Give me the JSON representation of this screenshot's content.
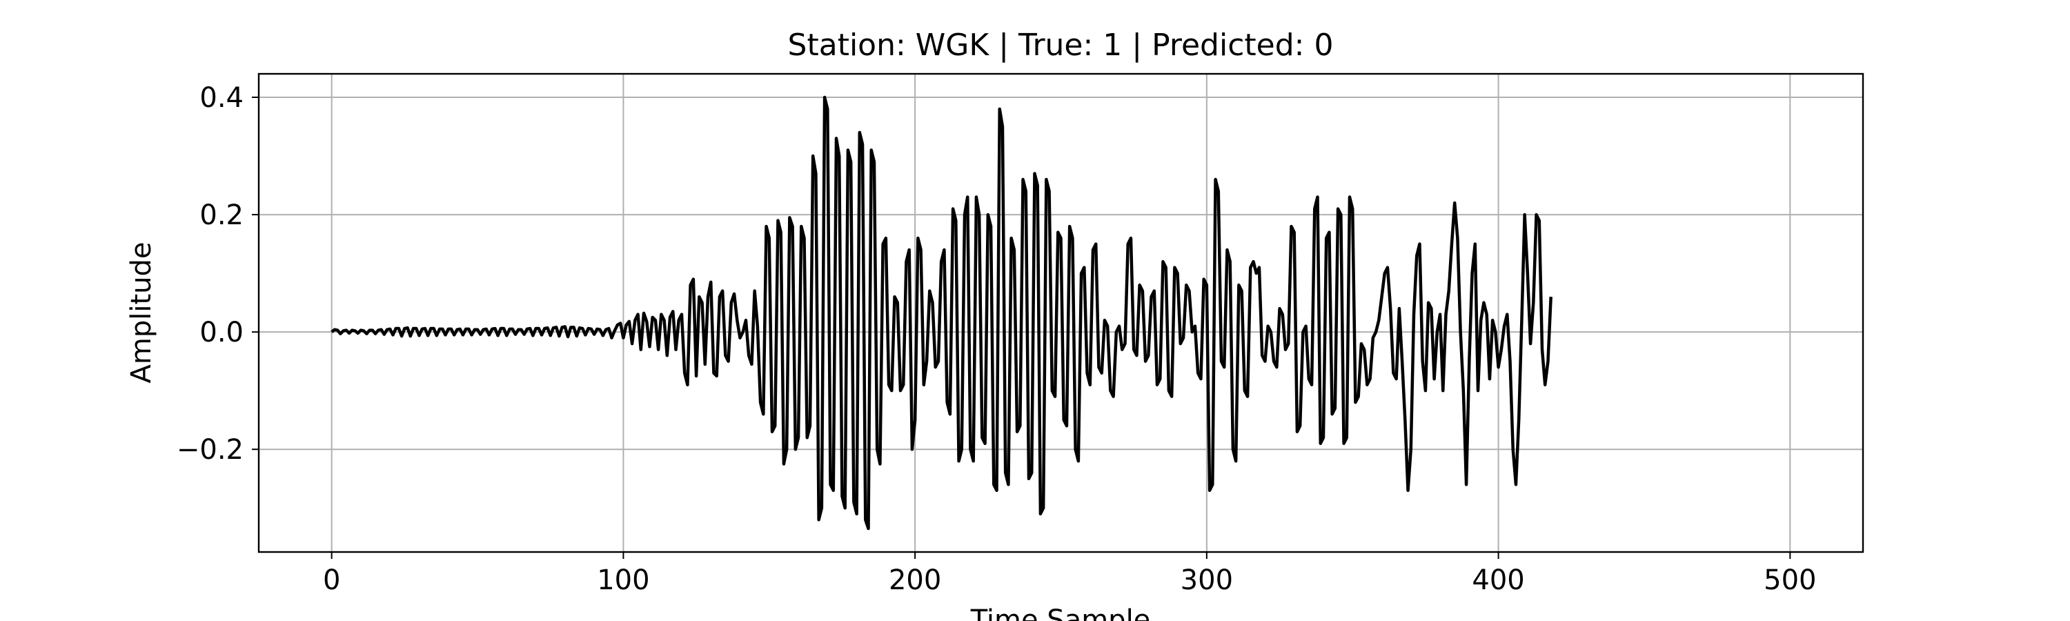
{
  "chart_data": {
    "type": "line",
    "title": "Station: WGK | True: 1 | Predicted: 0",
    "xlabel": "Time Sample",
    "ylabel": "Amplitude",
    "xlim": [
      -25,
      525
    ],
    "ylim": [
      -0.375,
      0.44
    ],
    "xticks": [
      0,
      100,
      200,
      300,
      400,
      500
    ],
    "xtick_labels": [
      "0",
      "100",
      "200",
      "300",
      "400",
      "500"
    ],
    "yticks": [
      -0.2,
      0.0,
      0.2,
      0.4
    ],
    "ytick_labels": [
      "−0.2",
      "0.0",
      "0.2",
      "0.4"
    ],
    "grid": true,
    "line_color": "#000000",
    "grid_color": "#b0b0b0",
    "series": [
      {
        "x_start": 0,
        "x_step": 1,
        "values": [
          0.0,
          0.004,
          0.003,
          -0.003,
          0.002,
          0.003,
          -0.002,
          0.003,
          0.002,
          -0.002,
          0.003,
          0.002,
          -0.003,
          0.003,
          0.003,
          -0.003,
          0.003,
          0.004,
          -0.004,
          0.004,
          0.005,
          -0.005,
          0.006,
          0.006,
          -0.007,
          0.006,
          0.007,
          -0.007,
          0.006,
          0.006,
          -0.006,
          0.005,
          0.006,
          -0.006,
          0.006,
          0.006,
          -0.006,
          0.005,
          0.005,
          -0.005,
          0.005,
          0.005,
          -0.005,
          0.004,
          0.005,
          -0.005,
          0.005,
          0.005,
          -0.005,
          0.004,
          0.004,
          -0.004,
          0.004,
          0.005,
          -0.005,
          0.005,
          0.006,
          -0.006,
          0.006,
          0.006,
          -0.006,
          0.005,
          0.005,
          -0.004,
          0.004,
          0.004,
          -0.004,
          0.005,
          0.006,
          -0.006,
          0.006,
          0.006,
          -0.005,
          0.006,
          0.007,
          -0.006,
          0.007,
          0.008,
          -0.007,
          0.008,
          0.009,
          -0.008,
          0.008,
          0.008,
          -0.007,
          0.007,
          0.006,
          -0.005,
          0.006,
          0.005,
          -0.004,
          0.005,
          0.004,
          -0.006,
          0.004,
          0.006,
          -0.01,
          0.002,
          0.012,
          0.015,
          -0.01,
          0.012,
          0.018,
          -0.02,
          0.02,
          0.03,
          -0.03,
          0.032,
          0.018,
          -0.025,
          0.025,
          0.02,
          -0.03,
          0.03,
          0.02,
          -0.04,
          0.025,
          0.035,
          -0.03,
          0.02,
          0.03,
          -0.07,
          -0.09,
          0.08,
          0.09,
          -0.075,
          0.06,
          0.05,
          -0.055,
          0.06,
          0.085,
          -0.07,
          -0.075,
          0.06,
          0.07,
          -0.04,
          -0.05,
          0.05,
          0.065,
          0.02,
          -0.01,
          0.0,
          0.02,
          -0.04,
          -0.055,
          0.07,
          0.01,
          -0.12,
          -0.14,
          0.18,
          0.16,
          -0.17,
          -0.16,
          0.19,
          0.17,
          -0.225,
          -0.2,
          0.195,
          0.18,
          -0.2,
          -0.18,
          0.18,
          0.16,
          -0.18,
          -0.16,
          0.3,
          0.27,
          -0.32,
          -0.3,
          0.4,
          0.38,
          -0.26,
          -0.27,
          0.33,
          0.3,
          -0.28,
          -0.3,
          0.31,
          0.29,
          -0.29,
          -0.31,
          0.34,
          0.32,
          -0.32,
          -0.335,
          0.31,
          0.29,
          -0.2,
          -0.225,
          0.15,
          0.16,
          -0.09,
          -0.1,
          0.06,
          0.05,
          -0.1,
          -0.09,
          0.12,
          0.14,
          -0.2,
          -0.15,
          0.16,
          0.14,
          -0.09,
          -0.05,
          0.07,
          0.05,
          -0.06,
          -0.05,
          0.12,
          0.14,
          -0.12,
          -0.14,
          0.21,
          0.19,
          -0.22,
          -0.2,
          0.2,
          0.23,
          -0.2,
          -0.22,
          0.23,
          0.2,
          -0.18,
          -0.19,
          0.2,
          0.18,
          -0.26,
          -0.27,
          0.38,
          0.35,
          -0.24,
          -0.26,
          0.16,
          0.14,
          -0.17,
          -0.16,
          0.26,
          0.24,
          -0.25,
          -0.24,
          0.27,
          0.25,
          -0.31,
          -0.3,
          0.26,
          0.24,
          -0.1,
          -0.11,
          0.17,
          0.16,
          -0.15,
          -0.16,
          0.18,
          0.16,
          -0.2,
          -0.22,
          0.1,
          0.11,
          -0.07,
          -0.09,
          0.14,
          0.15,
          -0.06,
          -0.07,
          0.02,
          0.01,
          -0.1,
          -0.11,
          0.0,
          0.01,
          -0.03,
          -0.02,
          0.15,
          0.16,
          -0.03,
          -0.04,
          0.08,
          0.07,
          -0.05,
          -0.04,
          0.06,
          0.07,
          -0.09,
          -0.08,
          0.12,
          0.11,
          -0.1,
          -0.11,
          0.11,
          0.1,
          -0.02,
          -0.01,
          0.08,
          0.07,
          0.0,
          0.01,
          -0.07,
          -0.08,
          0.09,
          0.08,
          -0.27,
          -0.26,
          0.26,
          0.24,
          -0.05,
          -0.06,
          0.14,
          0.12,
          -0.2,
          -0.22,
          0.08,
          0.07,
          -0.1,
          -0.11,
          0.11,
          0.12,
          0.1,
          0.11,
          -0.04,
          -0.05,
          0.01,
          0.0,
          -0.05,
          -0.06,
          0.04,
          0.03,
          -0.03,
          -0.02,
          0.18,
          0.17,
          -0.17,
          -0.16,
          0.0,
          0.01,
          -0.08,
          -0.09,
          0.21,
          0.23,
          -0.19,
          -0.18,
          0.16,
          0.17,
          -0.14,
          -0.13,
          0.21,
          0.2,
          -0.19,
          -0.18,
          0.23,
          0.21,
          -0.12,
          -0.11,
          -0.02,
          -0.03,
          -0.09,
          -0.08,
          -0.01,
          0.0,
          0.02,
          0.06,
          0.1,
          0.11,
          0.04,
          -0.07,
          -0.08,
          0.04,
          -0.05,
          -0.15,
          -0.27,
          -0.2,
          0.03,
          0.13,
          0.15,
          -0.05,
          -0.1,
          0.05,
          0.04,
          -0.08,
          0.0,
          0.03,
          -0.1,
          0.03,
          0.07,
          0.15,
          0.22,
          0.16,
          0.0,
          -0.1,
          -0.26,
          -0.05,
          0.1,
          0.15,
          -0.1,
          0.02,
          0.05,
          0.03,
          -0.08,
          0.02,
          0.0,
          -0.06,
          -0.03,
          0.01,
          0.03,
          -0.05,
          -0.2,
          -0.26,
          -0.15,
          0.02,
          0.2,
          0.1,
          -0.02,
          0.05,
          0.2,
          0.19,
          -0.03,
          -0.09,
          -0.05,
          0.06
        ]
      }
    ]
  }
}
